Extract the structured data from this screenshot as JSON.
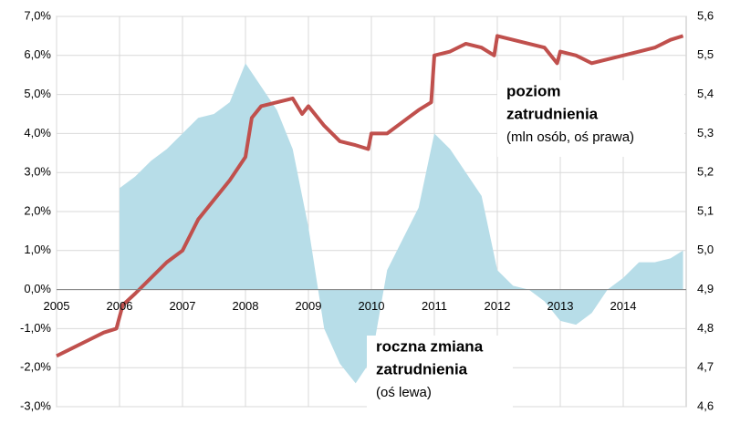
{
  "chart_data": {
    "type": "line-area",
    "xlim": [
      2005,
      2015
    ],
    "xticks": [
      2005,
      2006,
      2007,
      2008,
      2009,
      2010,
      2011,
      2012,
      2013,
      2014
    ],
    "ylim": [
      -3,
      7
    ],
    "yticks": [
      {
        "value": -3,
        "label": "-3,0%"
      },
      {
        "value": -2,
        "label": "-2,0%"
      },
      {
        "value": -1,
        "label": "-1,0%"
      },
      {
        "value": 0,
        "label": "0,0%"
      },
      {
        "value": 1,
        "label": "1,0%"
      },
      {
        "value": 2,
        "label": "2,0%"
      },
      {
        "value": 3,
        "label": "3,0%"
      },
      {
        "value": 4,
        "label": "4,0%"
      },
      {
        "value": 5,
        "label": "5,0%"
      },
      {
        "value": 6,
        "label": "6,0%"
      },
      {
        "value": 7,
        "label": "7,0%"
      }
    ],
    "y2lim": [
      4.6,
      5.6
    ],
    "y2ticks": [
      {
        "value": 4.6,
        "label": "4,6"
      },
      {
        "value": 4.7,
        "label": "4,7"
      },
      {
        "value": 4.8,
        "label": "4,8"
      },
      {
        "value": 4.9,
        "label": "4,9"
      },
      {
        "value": 5.0,
        "label": "5,0"
      },
      {
        "value": 5.1,
        "label": "5,1"
      },
      {
        "value": 5.2,
        "label": "5,2"
      },
      {
        "value": 5.3,
        "label": "5,3"
      },
      {
        "value": 5.4,
        "label": "5,4"
      },
      {
        "value": 5.5,
        "label": "5,5"
      },
      {
        "value": 5.6,
        "label": "5,6"
      }
    ],
    "grid": true,
    "series": [
      {
        "kind": "area",
        "color": "#b7dde8",
        "x": [
          2006,
          2006.25,
          2006.5,
          2006.75,
          2007,
          2007.25,
          2007.5,
          2007.75,
          2008,
          2008.25,
          2008.5,
          2008.75,
          2009,
          2009.25,
          2009.5,
          2009.75,
          2010,
          2010.25,
          2010.5,
          2010.75,
          2011,
          2011.25,
          2011.5,
          2011.75,
          2012,
          2012.25,
          2012.5,
          2012.75,
          2013,
          2013.25,
          2013.5,
          2013.75,
          2014,
          2014.25,
          2014.5,
          2014.75,
          2014.95
        ],
        "values": [
          2.6,
          2.9,
          3.3,
          3.6,
          4.0,
          4.4,
          4.5,
          4.8,
          5.8,
          5.2,
          4.6,
          3.6,
          1.6,
          -1.0,
          -1.9,
          -2.4,
          -1.8,
          0.5,
          1.3,
          2.1,
          4.0,
          3.6,
          3.0,
          2.4,
          0.5,
          0.1,
          0.0,
          -0.3,
          -0.8,
          -0.9,
          -0.6,
          0.0,
          0.3,
          0.7,
          0.7,
          0.8,
          1.0
        ]
      },
      {
        "kind": "line",
        "axis": "y2",
        "color": "#c0504d",
        "x": [
          2005,
          2005.25,
          2005.5,
          2005.75,
          2005.95,
          2006.05,
          2006.25,
          2006.5,
          2006.75,
          2007,
          2007.25,
          2007.5,
          2007.75,
          2008,
          2008.1,
          2008.25,
          2008.5,
          2008.75,
          2008.9,
          2009,
          2009.25,
          2009.5,
          2009.75,
          2009.95,
          2010,
          2010.25,
          2010.5,
          2010.75,
          2010.95,
          2011,
          2011.25,
          2011.5,
          2011.75,
          2011.95,
          2012,
          2012.25,
          2012.5,
          2012.75,
          2012.95,
          2013,
          2013.25,
          2013.5,
          2013.75,
          2014,
          2014.25,
          2014.5,
          2014.75,
          2014.95
        ],
        "values": [
          4.73,
          4.75,
          4.77,
          4.79,
          4.8,
          4.86,
          4.89,
          4.93,
          4.97,
          5.0,
          5.08,
          5.13,
          5.18,
          5.24,
          5.34,
          5.37,
          5.38,
          5.39,
          5.35,
          5.37,
          5.32,
          5.28,
          5.27,
          5.26,
          5.3,
          5.3,
          5.33,
          5.36,
          5.38,
          5.5,
          5.51,
          5.53,
          5.52,
          5.5,
          5.55,
          5.54,
          5.53,
          5.52,
          5.48,
          5.51,
          5.5,
          5.48,
          5.49,
          5.5,
          5.51,
          5.52,
          5.54,
          5.55
        ]
      }
    ],
    "annotations": [
      {
        "title": [
          "poziom",
          "zatrudnienia"
        ],
        "note": "(mln osób, oś prawa)"
      },
      {
        "title": [
          "roczna zmiana",
          "zatrudnienia"
        ],
        "note": "(oś lewa)"
      }
    ]
  }
}
